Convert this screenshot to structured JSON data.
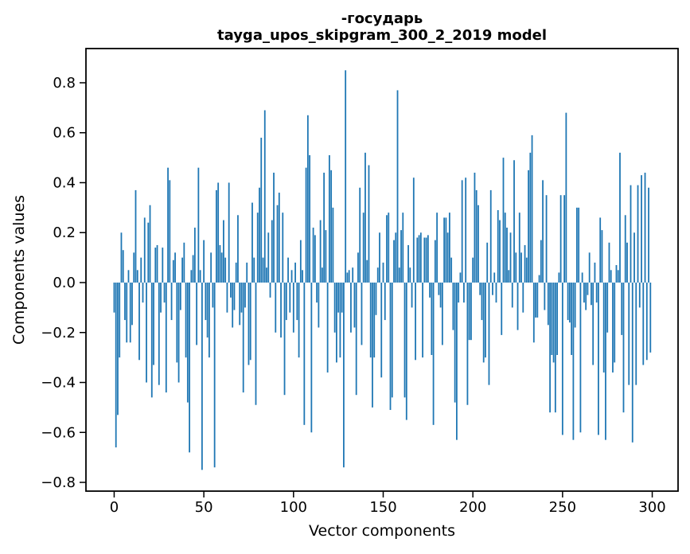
{
  "figure": {
    "title_line1": "-государь",
    "title_line2": "tayga_upos_skipgram_300_2_2019 model",
    "xlabel": "Vector components",
    "ylabel": "Components values"
  },
  "chart_data": {
    "type": "bar",
    "title": "-государь — tayga_upos_skipgram_300_2_2019 model",
    "xlabel": "Vector components",
    "ylabel": "Components values",
    "bar_color": "#1f77b4",
    "axis_color": "#000000",
    "grid": false,
    "legend": "none",
    "n_components": 300,
    "xlim": [
      -15.73,
      314.4
    ],
    "ylim": [
      -0.835,
      0.937
    ],
    "x_ticks": [
      0,
      50,
      100,
      150,
      200,
      250,
      300
    ],
    "y_ticks": [
      0.8,
      0.6,
      0.4,
      0.2,
      0.0,
      -0.2,
      -0.4,
      -0.6,
      -0.8
    ],
    "y_tick_labels": [
      "0.8",
      "0.6",
      "0.4",
      "0.2",
      "0.0",
      "−0.2",
      "−0.4",
      "−0.6",
      "−0.8"
    ],
    "values": [
      -0.12,
      -0.66,
      -0.53,
      -0.3,
      0.2,
      0.13,
      -0.15,
      -0.24,
      0.05,
      -0.24,
      -0.17,
      0.12,
      0.37,
      0.05,
      -0.31,
      0.1,
      -0.08,
      0.26,
      -0.4,
      0.24,
      0.31,
      -0.46,
      -0.33,
      0.14,
      0.15,
      -0.41,
      -0.12,
      0.14,
      -0.08,
      -0.44,
      0.46,
      0.41,
      -0.15,
      0.09,
      0.12,
      -0.32,
      -0.4,
      -0.11,
      0.1,
      0.16,
      -0.3,
      -0.48,
      -0.68,
      0.05,
      0.11,
      0.22,
      -0.25,
      0.46,
      0.05,
      -0.75,
      0.17,
      -0.15,
      -0.22,
      -0.3,
      0.12,
      -0.1,
      -0.74,
      0.37,
      0.4,
      0.15,
      0.12,
      0.25,
      0.1,
      -0.12,
      0.4,
      -0.06,
      -0.18,
      -0.11,
      0.08,
      0.27,
      -0.17,
      -0.12,
      -0.44,
      -0.1,
      0.08,
      -0.33,
      -0.31,
      0.32,
      0.1,
      -0.49,
      0.28,
      0.38,
      0.58,
      0.1,
      0.69,
      0.06,
      0.2,
      -0.06,
      0.25,
      0.44,
      -0.2,
      0.31,
      0.36,
      -0.22,
      0.28,
      -0.45,
      -0.15,
      0.1,
      -0.12,
      0.05,
      -0.2,
      0.08,
      -0.15,
      -0.3,
      0.17,
      0.05,
      -0.57,
      0.46,
      0.67,
      0.51,
      -0.6,
      0.22,
      0.19,
      -0.08,
      -0.18,
      0.25,
      0.06,
      0.44,
      0.21,
      -0.36,
      0.51,
      0.45,
      0.3,
      -0.2,
      -0.32,
      -0.12,
      -0.3,
      -0.12,
      -0.74,
      0.85,
      0.04,
      0.05,
      -0.2,
      0.06,
      -0.18,
      -0.45,
      0.12,
      0.38,
      -0.25,
      0.28,
      0.52,
      0.09,
      0.47,
      -0.3,
      -0.5,
      -0.3,
      -0.13,
      0.06,
      0.2,
      -0.38,
      0.08,
      -0.15,
      0.27,
      0.28,
      -0.51,
      -0.46,
      0.17,
      0.2,
      0.77,
      0.06,
      0.21,
      0.28,
      -0.46,
      -0.55,
      0.15,
      0.06,
      -0.1,
      0.42,
      -0.31,
      0.18,
      0.19,
      0.2,
      -0.3,
      0.18,
      0.18,
      0.19,
      -0.06,
      -0.29,
      -0.57,
      0.17,
      0.28,
      -0.05,
      -0.1,
      -0.25,
      0.26,
      0.26,
      0.2,
      0.28,
      0.1,
      -0.19,
      -0.48,
      -0.63,
      -0.08,
      0.04,
      0.41,
      -0.08,
      0.42,
      -0.49,
      -0.23,
      -0.23,
      0.1,
      0.44,
      0.37,
      0.31,
      -0.05,
      -0.15,
      -0.32,
      -0.3,
      0.16,
      -0.41,
      0.37,
      -0.05,
      0.04,
      -0.08,
      0.29,
      0.25,
      -0.21,
      0.5,
      0.28,
      0.22,
      0.05,
      0.2,
      -0.1,
      0.49,
      0.12,
      -0.19,
      0.28,
      0.12,
      -0.12,
      0.15,
      0.1,
      0.45,
      0.52,
      0.59,
      -0.24,
      -0.14,
      -0.14,
      0.03,
      0.17,
      0.41,
      -0.11,
      0.35,
      -0.17,
      -0.52,
      -0.29,
      -0.32,
      -0.52,
      -0.29,
      0.04,
      0.35,
      -0.61,
      0.35,
      0.68,
      -0.15,
      -0.16,
      -0.29,
      -0.63,
      -0.18,
      0.3,
      0.3,
      -0.6,
      0.04,
      -0.08,
      -0.11,
      -0.05,
      0.12,
      -0.09,
      -0.33,
      0.08,
      -0.08,
      -0.61,
      0.26,
      0.21,
      -0.36,
      -0.63,
      -0.2,
      0.16,
      0.05,
      -0.36,
      -0.32,
      0.07,
      0.05,
      0.52,
      -0.21,
      -0.52,
      0.27,
      0.16,
      -0.41,
      0.39,
      -0.64,
      0.2,
      -0.41,
      0.39,
      -0.1,
      0.43,
      -0.33,
      0.44,
      -0.31,
      0.38,
      -0.28
    ]
  }
}
